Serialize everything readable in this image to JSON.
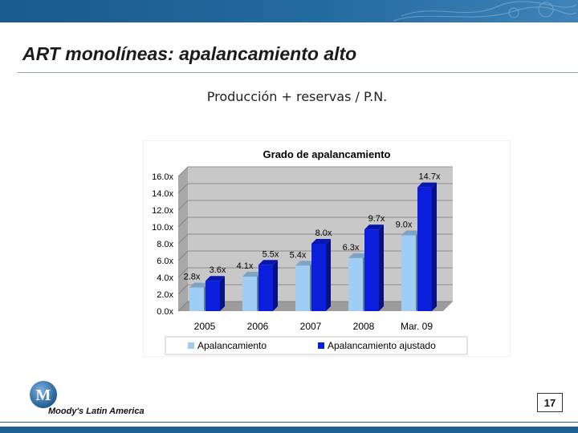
{
  "slide": {
    "title": "ART monolíneas: apalancamiento alto",
    "subtitle": "Producción + reservas / P.N.",
    "page_number": "17",
    "brand_text": "Moody's Latin America",
    "logo_letter": "M"
  },
  "colors": {
    "band": "#1f5f93",
    "series_1": "#9fcdf4",
    "series_2": "#0a1edb",
    "plot_bg": "#c8c8c8"
  },
  "chart_data": {
    "type": "bar",
    "title": "Grado de apalancamiento",
    "categories": [
      "2005",
      "2006",
      "2007",
      "2008",
      "Mar. 09"
    ],
    "series": [
      {
        "name": "Apalancamiento",
        "values": [
          2.8,
          4.1,
          5.4,
          6.3,
          9.0
        ],
        "labels": [
          "2.8x",
          "4.1x",
          "5.4x",
          "6.3x",
          "9.0x"
        ]
      },
      {
        "name": "Apalancamiento ajustado",
        "values": [
          3.6,
          5.5,
          8.0,
          9.7,
          14.7
        ],
        "labels": [
          "3.6x",
          "5.5x",
          "8.0x",
          "9.7x",
          "14.7x"
        ]
      }
    ],
    "y_ticks": [
      "0.0x",
      "2.0x",
      "4.0x",
      "6.0x",
      "8.0x",
      "10.0x",
      "12.0x",
      "14.0x",
      "16.0x"
    ],
    "ylim": [
      0,
      16
    ],
    "grid": true,
    "legend_position": "bottom",
    "style": "3d"
  }
}
